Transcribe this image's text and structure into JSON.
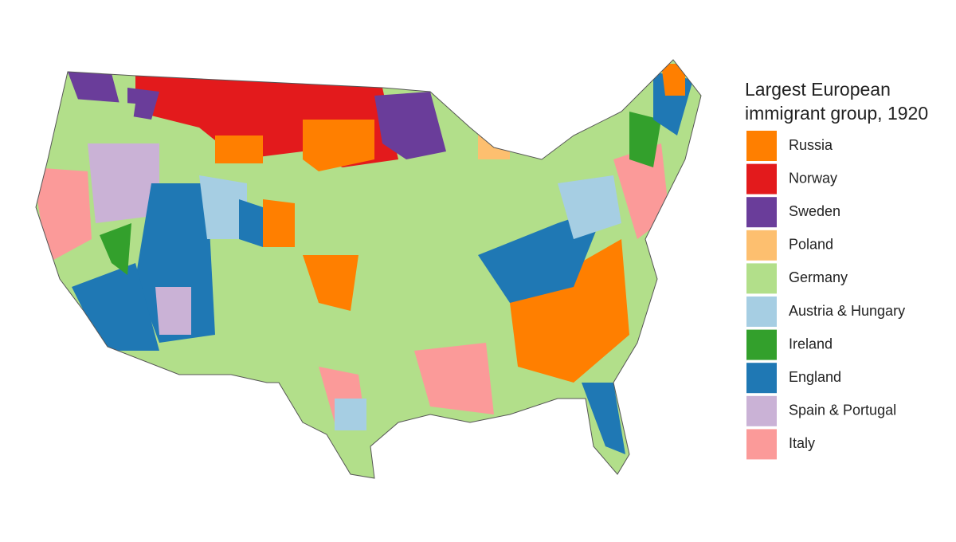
{
  "legend": {
    "title_lines": [
      "Largest European",
      "immigrant group, 1920"
    ],
    "entries": [
      {
        "name": "Russia",
        "color": "#ff7f00"
      },
      {
        "name": "Norway",
        "color": "#e31a1c"
      },
      {
        "name": "Sweden",
        "color": "#6a3d9a"
      },
      {
        "name": "Poland",
        "color": "#fdbf6f"
      },
      {
        "name": "Germany",
        "color": "#b2df8a"
      },
      {
        "name": "Austria & Hungary",
        "color": "#a6cee3"
      },
      {
        "name": "Ireland",
        "color": "#33a02c"
      },
      {
        "name": "England",
        "color": "#1f78b4"
      },
      {
        "name": "Spain & Portugal",
        "color": "#cab2d6"
      },
      {
        "name": "Italy",
        "color": "#fb9a99"
      }
    ]
  }
}
